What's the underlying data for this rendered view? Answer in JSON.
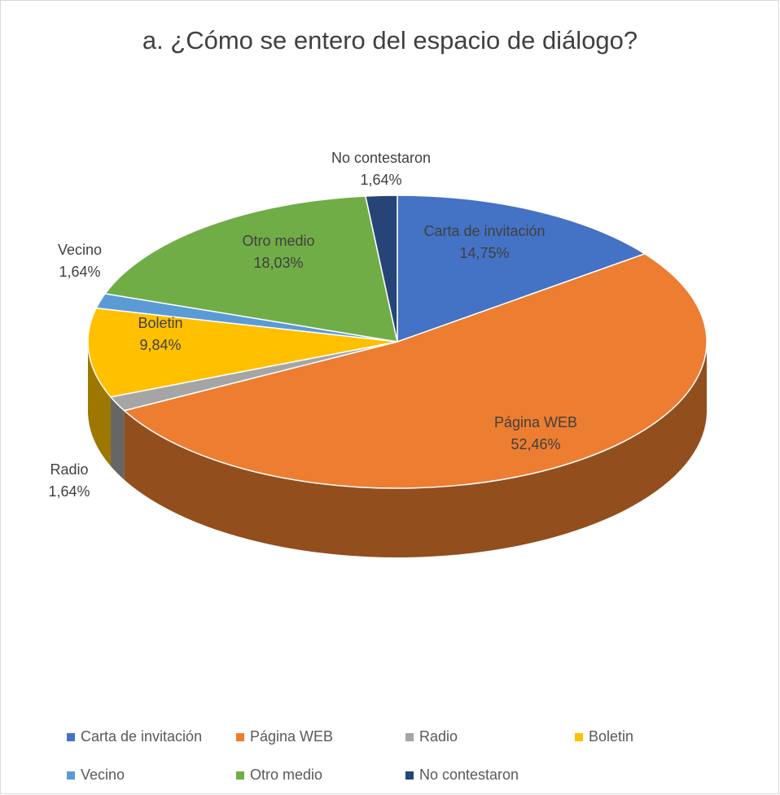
{
  "chart_data": {
    "type": "pie3d",
    "title": "a.  ¿Cómo se entero del espacio de diálogo?",
    "categories": [
      "Carta de invitación",
      "Página WEB",
      "Radio",
      "Boletin",
      "Vecino",
      "Otro medio",
      "No contestaron"
    ],
    "values": [
      14.75,
      52.46,
      1.64,
      9.84,
      1.64,
      18.03,
      1.64
    ],
    "value_labels": [
      "14,75%",
      "52,46%",
      "1,64%",
      "9,84%",
      "1,64%",
      "18,03%",
      "1,64%"
    ],
    "colors": [
      "#4472c4",
      "#ed7d31",
      "#a5a5a5",
      "#ffc000",
      "#5b9bd5",
      "#70ad47",
      "#264478"
    ],
    "legend": "bottom"
  }
}
